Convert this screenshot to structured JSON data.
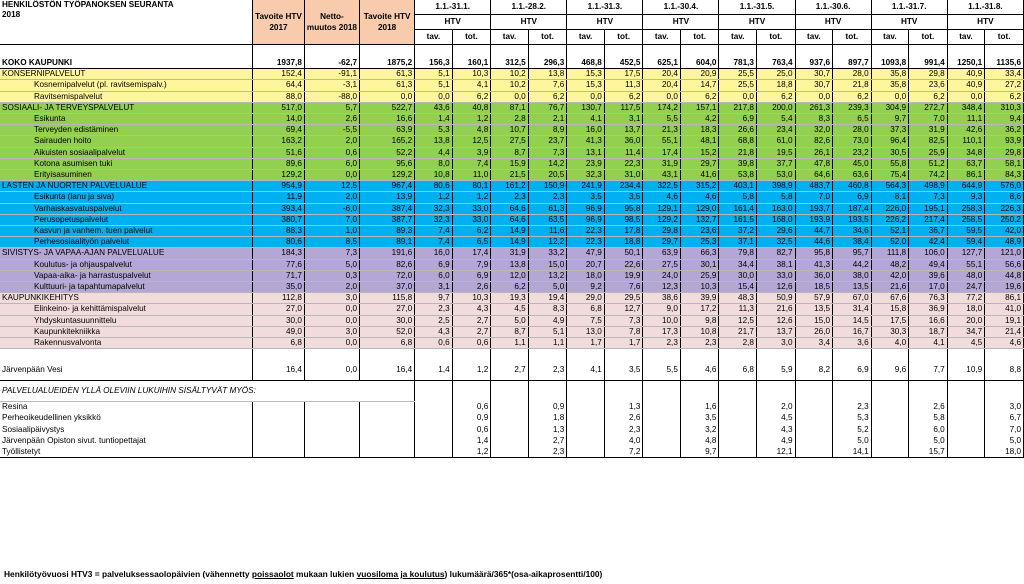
{
  "header": {
    "title_line1": "HENKILÖSTÖN TYÖPANOKSEN SEURANTA",
    "title_line2": "2018",
    "col_tavoite2017": "Tavoite HTV 2017",
    "col_nettomuutos": "Netto-muutos 2018",
    "col_tavoite2018": "Tavoite HTV 2018",
    "periods": [
      "1.1.-31.1.",
      "1.1.-28.2.",
      "1.1.-31.3.",
      "1.1.-30.4.",
      "1.1.-31.5.",
      "1.1.-30.6.",
      "1.1.-31.7.",
      "1.1.-31.8."
    ],
    "htv": "HTV",
    "tav": "tav.",
    "tot": "tot."
  },
  "rows": [
    {
      "label": "KOKO KAUPUNKI",
      "v": [
        "1937,8",
        "-62,7",
        "1875,2",
        "156,3",
        "160,1",
        "312,5",
        "296,3",
        "468,8",
        "452,5",
        "625,1",
        "604,0",
        "781,3",
        "763,4",
        "937,6",
        "897,7",
        "1093,8",
        "991,4",
        "1250,1",
        "1135,6"
      ]
    },
    {
      "label": "KONSERNIPALVELUT",
      "v": [
        "152,4",
        "-91,1",
        "61,3",
        "5,1",
        "10,3",
        "10,2",
        "13,8",
        "15,3",
        "17,5",
        "20,4",
        "20,9",
        "25,5",
        "25,0",
        "30,7",
        "28,0",
        "35,8",
        "29,8",
        "40,9",
        "33,4"
      ]
    },
    {
      "label": "Kosnernipalvelut (pl. ravitsemispalv.)",
      "v": [
        "64,4",
        "-3,1",
        "61,3",
        "5,1",
        "4,1",
        "10,2",
        "7,6",
        "15,3",
        "11,3",
        "20,4",
        "14,7",
        "25,5",
        "18,8",
        "30,7",
        "21,8",
        "35,8",
        "23,6",
        "40,9",
        "27,2"
      ]
    },
    {
      "label": "Ravitsemispalvelut",
      "v": [
        "88,0",
        "-88,0",
        "0,0",
        "0,0",
        "6,2",
        "0,0",
        "6,2",
        "0,0",
        "6,2",
        "0,0",
        "6,2",
        "0,0",
        "6,2",
        "0,0",
        "6,2",
        "0,0",
        "6,2",
        "0,0",
        "6,2"
      ]
    },
    {
      "label": "SOSIAALI- JA TERVEYSPALVELUT",
      "v": [
        "517,0",
        "5,7",
        "522,7",
        "43,6",
        "40,8",
        "87,1",
        "76,7",
        "130,7",
        "117,5",
        "174,2",
        "157,1",
        "217,8",
        "200,0",
        "261,3",
        "239,3",
        "304,9",
        "272,7",
        "348,4",
        "310,3"
      ]
    },
    {
      "label": "Esikunta",
      "v": [
        "14,0",
        "2,6",
        "16,6",
        "1,4",
        "1,2",
        "2,8",
        "2,1",
        "4,1",
        "3,1",
        "5,5",
        "4,2",
        "6,9",
        "5,4",
        "8,3",
        "6,5",
        "9,7",
        "7,0",
        "11,1",
        "9,4"
      ]
    },
    {
      "label": "Terveyden edistäminen",
      "v": [
        "69,4",
        "-5,5",
        "63,9",
        "5,3",
        "4,8",
        "10,7",
        "8,9",
        "16,0",
        "13,7",
        "21,3",
        "18,3",
        "26,6",
        "23,4",
        "32,0",
        "28,0",
        "37,3",
        "31,9",
        "42,6",
        "36,2"
      ]
    },
    {
      "label": "Sairauden hoito",
      "v": [
        "163,2",
        "2,0",
        "165,2",
        "13,8",
        "12,5",
        "27,5",
        "23,7",
        "41,3",
        "36,0",
        "55,1",
        "48,1",
        "68,8",
        "61,0",
        "82,6",
        "73,0",
        "96,4",
        "82,5",
        "110,1",
        "93,9"
      ]
    },
    {
      "label": "Aikuisten sosiaalipalvelut",
      "v": [
        "51,6",
        "0,6",
        "52,2",
        "4,4",
        "3,9",
        "8,7",
        "7,3",
        "13,1",
        "11,4",
        "17,4",
        "15,2",
        "21,8",
        "19,5",
        "26,1",
        "23,2",
        "30,5",
        "25,9",
        "34,8",
        "29,8"
      ]
    },
    {
      "label": "Kotona asumisen tuki",
      "v": [
        "89,6",
        "6,0",
        "95,6",
        "8,0",
        "7,4",
        "15,9",
        "14,2",
        "23,9",
        "22,3",
        "31,9",
        "29,7",
        "39,8",
        "37,7",
        "47,8",
        "45,0",
        "55,8",
        "51,2",
        "63,7",
        "58,1"
      ]
    },
    {
      "label": "Erityisasuminen",
      "v": [
        "129,2",
        "0,0",
        "129,2",
        "10,8",
        "11,0",
        "21,5",
        "20,5",
        "32,3",
        "31,0",
        "43,1",
        "41,6",
        "53,8",
        "53,0",
        "64,6",
        "63,6",
        "75,4",
        "74,2",
        "86,1",
        "84,3"
      ]
    },
    {
      "label": "LASTEN JA NUORTEN PALVELUALUE",
      "v": [
        "954,9",
        "12,5",
        "967,4",
        "80,6",
        "80,1",
        "161,2",
        "150,9",
        "241,9",
        "234,4",
        "322,5",
        "315,2",
        "403,1",
        "398,9",
        "483,7",
        "460,8",
        "564,3",
        "498,9",
        "644,9",
        "576,0"
      ]
    },
    {
      "label": "Esikunta (lanu ja siva)",
      "v": [
        "11,9",
        "2,0",
        "13,9",
        "1,2",
        "1,2",
        "2,3",
        "2,3",
        "3,5",
        "3,5",
        "4,6",
        "4,6",
        "5,8",
        "5,8",
        "7,0",
        "6,9",
        "8,1",
        "7,3",
        "9,3",
        "8,6"
      ]
    },
    {
      "label": "Varhaiskasvatuspalvelut",
      "v": [
        "393,4",
        "-6,0",
        "387,4",
        "32,3",
        "33,0",
        "64,6",
        "61,3",
        "96,9",
        "95,8",
        "129,1",
        "129,0",
        "161,4",
        "163,0",
        "193,7",
        "187,4",
        "226,0",
        "195,1",
        "258,3",
        "226,3"
      ]
    },
    {
      "label": "Perusopetuspalvelut",
      "v": [
        "380,7",
        "7,0",
        "387,7",
        "32,3",
        "33,0",
        "64,6",
        "63,5",
        "96,9",
        "98,5",
        "129,2",
        "132,7",
        "161,5",
        "168,0",
        "193,9",
        "193,5",
        "226,2",
        "217,4",
        "258,5",
        "250,2"
      ]
    },
    {
      "label": "Kasvun ja vanhem. tuen palvelut",
      "v": [
        "88,3",
        "1,0",
        "89,3",
        "7,4",
        "6,2",
        "14,9",
        "11,6",
        "22,3",
        "17,8",
        "29,8",
        "23,6",
        "37,2",
        "29,6",
        "44,7",
        "34,6",
        "52,1",
        "36,7",
        "59,5",
        "42,0"
      ]
    },
    {
      "label": "Perhesosiaalityön palvelut",
      "v": [
        "80,6",
        "8,5",
        "89,1",
        "7,4",
        "6,5",
        "14,9",
        "12,2",
        "22,3",
        "18,8",
        "29,7",
        "25,3",
        "37,1",
        "32,5",
        "44,6",
        "38,4",
        "52,0",
        "42,4",
        "59,4",
        "48,9"
      ]
    },
    {
      "label": "SIVISTYS- JA VAPAA-AJAN PALVELUALUE",
      "v": [
        "184,3",
        "7,3",
        "191,6",
        "16,0",
        "17,4",
        "31,9",
        "33,2",
        "47,9",
        "50,1",
        "63,9",
        "66,3",
        "79,8",
        "82,7",
        "95,8",
        "95,7",
        "111,8",
        "106,0",
        "127,7",
        "121,0"
      ]
    },
    {
      "label": "Koulutus- ja ohjauspalvelut",
      "v": [
        "77,6",
        "5,0",
        "82,6",
        "6,9",
        "7,9",
        "13,8",
        "15,0",
        "20,7",
        "22,6",
        "27,5",
        "30,1",
        "34,4",
        "38,1",
        "41,3",
        "44,2",
        "48,2",
        "49,4",
        "55,1",
        "56,6"
      ]
    },
    {
      "label": "Vapaa-aika- ja harrastuspalvelut",
      "v": [
        "71,7",
        "0,3",
        "72,0",
        "6,0",
        "6,9",
        "12,0",
        "13,2",
        "18,0",
        "19,9",
        "24,0",
        "25,9",
        "30,0",
        "33,0",
        "36,0",
        "38,0",
        "42,0",
        "39,6",
        "48,0",
        "44,8"
      ]
    },
    {
      "label": "Kulttuuri- ja tapahtumapalvelut",
      "v": [
        "35,0",
        "2,0",
        "37,0",
        "3,1",
        "2,6",
        "6,2",
        "5,0",
        "9,2",
        "7,6",
        "12,3",
        "10,3",
        "15,4",
        "12,6",
        "18,5",
        "13,5",
        "21,6",
        "17,0",
        "24,7",
        "19,6"
      ]
    },
    {
      "label": "KAUPUNKIKEHITYS",
      "v": [
        "112,8",
        "3,0",
        "115,8",
        "9,7",
        "10,3",
        "19,3",
        "19,4",
        "29,0",
        "29,5",
        "38,6",
        "39,9",
        "48,3",
        "50,9",
        "57,9",
        "67,0",
        "67,6",
        "76,3",
        "77,2",
        "86,1"
      ]
    },
    {
      "label": "Elinkeino- ja kehittämispalvelut",
      "v": [
        "27,0",
        "0,0",
        "27,0",
        "2,3",
        "4,3",
        "4,5",
        "8,3",
        "6,8",
        "12,7",
        "9,0",
        "17,2",
        "11,3",
        "21,6",
        "13,5",
        "31,4",
        "15,8",
        "36,9",
        "18,0",
        "41,0"
      ]
    },
    {
      "label": "Yhdyskuntasuunnittelu",
      "v": [
        "30,0",
        "0,0",
        "30,0",
        "2,5",
        "2,7",
        "5,0",
        "4,9",
        "7,5",
        "7,3",
        "10,0",
        "9,8",
        "12,5",
        "12,6",
        "15,0",
        "14,5",
        "17,5",
        "16,6",
        "20,0",
        "19,1"
      ]
    },
    {
      "label": "Kaupunkitekniikka",
      "v": [
        "49,0",
        "3,0",
        "52,0",
        "4,3",
        "2,7",
        "8,7",
        "5,1",
        "13,0",
        "7,8",
        "17,3",
        "10,8",
        "21,7",
        "13,7",
        "26,0",
        "16,7",
        "30,3",
        "18,7",
        "34,7",
        "21,4"
      ]
    },
    {
      "label": "Rakennusvalvonta",
      "v": [
        "6,8",
        "0,0",
        "6,8",
        "0,6",
        "0,6",
        "1,1",
        "1,1",
        "1,7",
        "1,7",
        "2,3",
        "2,3",
        "2,8",
        "3,0",
        "3,4",
        "3,6",
        "4,0",
        "4,1",
        "4,5",
        "4,6"
      ]
    },
    {
      "label": "Järvenpään Vesi",
      "v": [
        "16,4",
        "0,0",
        "16,4",
        "1,4",
        "1,2",
        "2,7",
        "2,3",
        "4,1",
        "3,5",
        "5,5",
        "4,6",
        "6,8",
        "5,9",
        "8,2",
        "6,9",
        "9,6",
        "7,7",
        "10,9",
        "8,8"
      ]
    }
  ],
  "included_note": "PALVELUALUEIDEN YLLÄ OLEVIIN LUKUIHIN SISÄLTYVÄT MYÖS:",
  "included": [
    {
      "label": "Resina",
      "tot": [
        "0,6",
        "0,9",
        "1,3",
        "1,6",
        "2,0",
        "2,3",
        "2,6",
        "3,0"
      ]
    },
    {
      "label": "Perheoikeudellinen yksikkö",
      "tot": [
        "0,9",
        "1,8",
        "2,6",
        "3,5",
        "4,5",
        "5,3",
        "5,8",
        "6,7"
      ]
    },
    {
      "label": "Sosiaalipäivystys",
      "tot": [
        "0,6",
        "1,3",
        "2,3",
        "3,2",
        "4,3",
        "5,2",
        "6,0",
        "7,0"
      ]
    },
    {
      "label": "Järvenpään Opiston sivut. tuntiopettajat",
      "tot": [
        "1,4",
        "2,7",
        "4,0",
        "4,8",
        "4,9",
        "5,0",
        "5,0",
        "5,0"
      ]
    },
    {
      "label": "Työllistetyt",
      "tot": [
        "1,2",
        "2,3",
        "7,2",
        "9,7",
        "12,1",
        "14,1",
        "15,7",
        "18,0"
      ]
    }
  ],
  "footnote": {
    "part1": "Henkilötyövuosi HTV3 = palveluksessaolopäivien (vähennetty ",
    "u1": "poissaolot",
    "part2": " mukaan lukien ",
    "u2": "vuosiloma ja koulutus",
    "part3": ") lukumäärä/365*(osa-aikaprosentti/100)"
  }
}
